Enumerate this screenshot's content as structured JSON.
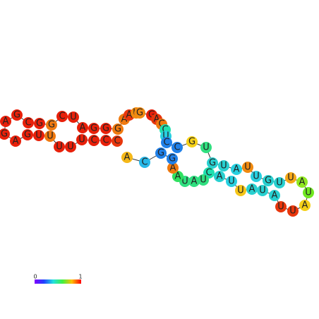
{
  "nodes": [
    {
      "label": "C",
      "color": "#e8360c"
    },
    {
      "label": "C",
      "color": "#e8200a"
    },
    {
      "label": "C",
      "color": "#e8200a"
    },
    {
      "label": "U",
      "color": "#e8200a"
    },
    {
      "label": "U",
      "color": "#e8200a"
    },
    {
      "label": "U",
      "color": "#e8200a"
    },
    {
      "label": "U",
      "color": "#f07a10"
    },
    {
      "label": "U",
      "color": "#e8200a"
    },
    {
      "label": "G",
      "color": "#e8200a"
    },
    {
      "label": "A",
      "color": "#e8200a"
    },
    {
      "label": "G",
      "color": "#e8200a"
    },
    {
      "label": "A",
      "color": "#e8200a"
    },
    {
      "label": "G",
      "color": "#e8200a"
    },
    {
      "label": "C",
      "color": "#e8200a"
    },
    {
      "label": "G",
      "color": "#e8200a"
    },
    {
      "label": "G",
      "color": "#f07a10"
    },
    {
      "label": "C",
      "color": "#e8200a"
    },
    {
      "label": "U",
      "color": "#e8200a"
    },
    {
      "label": "A",
      "color": "#e8200a"
    },
    {
      "label": "G",
      "color": "#e8200a"
    },
    {
      "label": "G",
      "color": "#e8200a"
    },
    {
      "label": "G",
      "color": "#f07a10"
    },
    {
      "label": "A",
      "color": "#f07a10"
    },
    {
      "label": "A",
      "color": "#e8360c"
    },
    {
      "label": "U",
      "color": "#f08a10"
    },
    {
      "label": "G",
      "color": "#f08a10"
    },
    {
      "label": "G",
      "color": "#e8200a"
    },
    {
      "label": "A",
      "color": "#e8360c"
    },
    {
      "label": "C",
      "color": "#f07a10"
    },
    {
      "label": "C",
      "color": "#20e0b0"
    },
    {
      "label": "U",
      "color": "#28d0e0"
    },
    {
      "label": "C",
      "color": "#2080e8"
    },
    {
      "label": "C",
      "color": "#2080e8"
    },
    {
      "label": "G",
      "color": "#f5d018"
    },
    {
      "label": "U",
      "color": "#30e080"
    },
    {
      "label": "G",
      "color": "#28d0d0"
    },
    {
      "label": "U",
      "color": "#28d0d0"
    },
    {
      "label": "A",
      "color": "#28d0e0"
    },
    {
      "label": "U",
      "color": "#f08a10"
    },
    {
      "label": "U",
      "color": "#28d0e0"
    },
    {
      "label": "G",
      "color": "#28d0d0"
    },
    {
      "label": "U",
      "color": "#28d0d0"
    },
    {
      "label": "U",
      "color": "#f5a818"
    },
    {
      "label": "A",
      "color": "#90e820"
    },
    {
      "label": "U",
      "color": "#70e820"
    },
    {
      "label": "A",
      "color": "#f5d018"
    },
    {
      "label": "U",
      "color": "#e8360c"
    },
    {
      "label": "U",
      "color": "#e8360c"
    },
    {
      "label": "A",
      "color": "#28d0d0"
    },
    {
      "label": "U",
      "color": "#28d0d0"
    },
    {
      "label": "A",
      "color": "#28d0d0"
    },
    {
      "label": "U",
      "color": "#f5c518"
    },
    {
      "label": "U",
      "color": "#28d0e0"
    },
    {
      "label": "A",
      "color": "#28d0d0"
    },
    {
      "label": "C",
      "color": "#20e0b0"
    },
    {
      "label": "U",
      "color": "#30e080"
    },
    {
      "label": "A",
      "color": "#30e080"
    },
    {
      "label": "U",
      "color": "#30e080"
    },
    {
      "label": "A",
      "color": "#30e060"
    },
    {
      "label": "A",
      "color": "#f07a10"
    },
    {
      "label": "G",
      "color": "#2080e8"
    },
    {
      "label": "G",
      "color": "#2080e8"
    },
    {
      "label": "C",
      "color": "#28b8e8"
    },
    {
      "label": "A",
      "color": "#f5b818"
    }
  ],
  "legend": {
    "min": "0",
    "max": "1"
  }
}
